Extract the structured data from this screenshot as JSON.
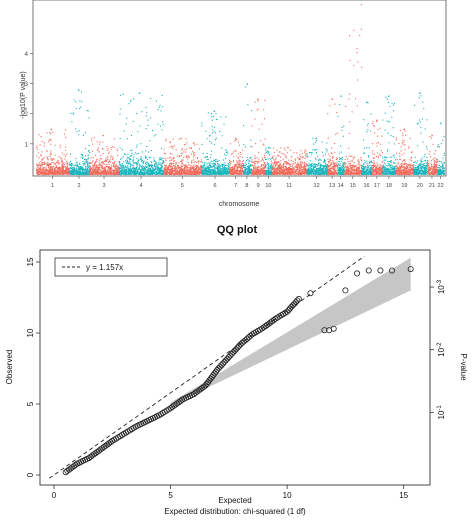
{
  "manhattan": {
    "ylabel": "-log10(P value)",
    "xlabel": "chromosome",
    "ytick_labels": [
      "1",
      "2",
      "3",
      "4"
    ],
    "chromosomes": [
      "1",
      "2",
      "3",
      "4",
      "5",
      "6",
      "7",
      "8",
      "9",
      "10",
      "11",
      "12",
      "13",
      "14",
      "15",
      "16",
      "17",
      "18",
      "19",
      "20",
      "21",
      "22"
    ],
    "colors": [
      "#f26b5b",
      "#19b5bd"
    ]
  },
  "qq": {
    "title": "QQ plot",
    "xlabel": "Expected",
    "subxlabel": "Expected distribution: chi-squared (1 df)",
    "ylabel": "Observed",
    "right_label": "P-value",
    "legend": "y = 1.157x",
    "xticks": [
      "0",
      "5",
      "10",
      "15"
    ],
    "yticks": [
      "0",
      "5",
      "10",
      "15"
    ],
    "right_ticks": [
      {
        "base": "10",
        "exp": "-1"
      },
      {
        "base": "10",
        "exp": "-2"
      },
      {
        "base": "10",
        "exp": "-3"
      }
    ]
  },
  "chart_data": [
    {
      "type": "scatter",
      "ylim": [
        0,
        5.7
      ],
      "chromosome_peaks": [
        {
          "chr": "1",
          "max": 1.5
        },
        {
          "chr": "2",
          "max": 2.8
        },
        {
          "chr": "3",
          "max": 1.3
        },
        {
          "chr": "4",
          "max": 2.7
        },
        {
          "chr": "5",
          "max": 1.2
        },
        {
          "chr": "6",
          "max": 2.1
        },
        {
          "chr": "7",
          "max": 1.2
        },
        {
          "chr": "8",
          "max": 3.0
        },
        {
          "chr": "9",
          "max": 2.5
        },
        {
          "chr": "10",
          "max": 0.9
        },
        {
          "chr": "11",
          "max": 0.9
        },
        {
          "chr": "12",
          "max": 1.2
        },
        {
          "chr": "13",
          "max": 2.5
        },
        {
          "chr": "14",
          "max": 2.6
        },
        {
          "chr": "15",
          "max": 5.8
        },
        {
          "chr": "16",
          "max": 2.4
        },
        {
          "chr": "17",
          "max": 1.8
        },
        {
          "chr": "18",
          "max": 2.6
        },
        {
          "chr": "19",
          "max": 1.5
        },
        {
          "chr": "20",
          "max": 2.7
        },
        {
          "chr": "21",
          "max": 1.3
        },
        {
          "chr": "22",
          "max": 1.7
        }
      ]
    },
    {
      "type": "scatter",
      "title": "QQ plot",
      "xlabel": "Expected",
      "ylabel": "Observed",
      "xlim": [
        0,
        15.7
      ],
      "ylim": [
        0,
        15
      ],
      "reference_slope": 1.157,
      "points": [
        [
          0.5,
          0.2
        ],
        [
          1,
          0.8
        ],
        [
          1.5,
          1.2
        ],
        [
          2,
          1.8
        ],
        [
          2.5,
          2.4
        ],
        [
          3,
          2.9
        ],
        [
          3.5,
          3.4
        ],
        [
          4,
          3.8
        ],
        [
          4.5,
          4.2
        ],
        [
          5,
          4.7
        ],
        [
          5.5,
          5.3
        ],
        [
          6,
          5.7
        ],
        [
          6.5,
          6.3
        ],
        [
          7,
          7.4
        ],
        [
          7.5,
          8.3
        ],
        [
          8,
          9.2
        ],
        [
          8.5,
          9.9
        ],
        [
          9,
          10.4
        ],
        [
          9.5,
          11.0
        ],
        [
          10,
          11.5
        ],
        [
          10.5,
          12.4
        ],
        [
          11,
          12.8
        ],
        [
          11.6,
          10.2
        ],
        [
          11.8,
          10.2
        ],
        [
          12,
          10.3
        ],
        [
          12.5,
          13.0
        ],
        [
          13,
          14.2
        ],
        [
          13.5,
          14.4
        ],
        [
          14,
          14.4
        ],
        [
          14.5,
          14.4
        ],
        [
          15.3,
          14.5
        ]
      ],
      "confidence_band": {
        "x": [
          5,
          15.3
        ],
        "upper_at_end": 15.3,
        "lower_at_end": 13.0
      }
    }
  ]
}
